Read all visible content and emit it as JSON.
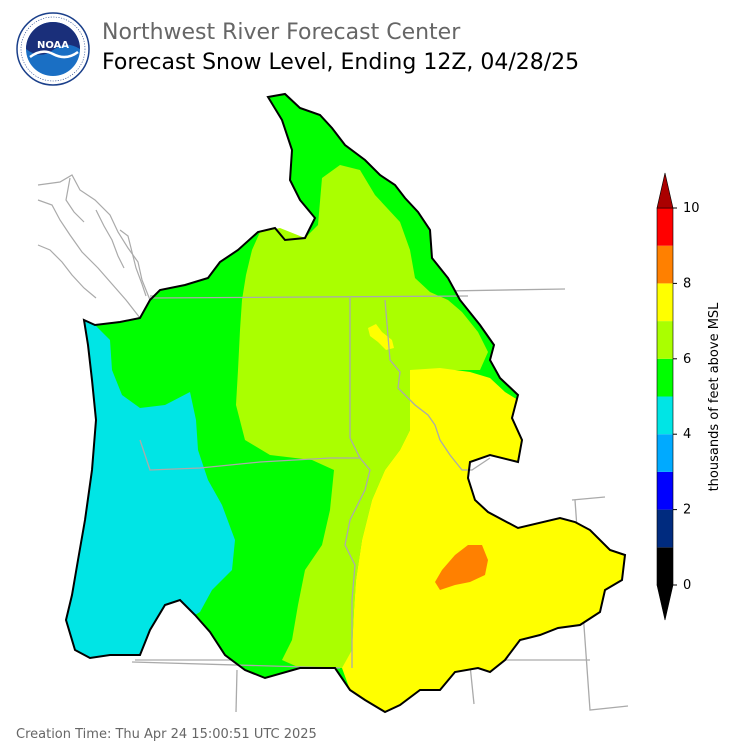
{
  "header": {
    "logo_text": "NOAA",
    "logo_ring_text": "NATIONAL OCEANIC AND ATMOSPHERIC ADMINISTRATION · U.S. DEPARTMENT OF COMMERCE",
    "agency": "Northwest River Forecast Center",
    "product": "Forecast Snow Level, Ending 12Z, 04/28/25"
  },
  "footer": {
    "creation_time": "Creation Time: Thu Apr 24 15:00:51 UTC 2025"
  },
  "colorbar": {
    "label": "thousands of feet above MSL",
    "ticks": [
      "0",
      "2",
      "4",
      "6",
      "8",
      "10"
    ],
    "bins": [
      {
        "from": 0,
        "to": 1,
        "color": "#000000"
      },
      {
        "from": 1,
        "to": 2,
        "color": "#002b7f"
      },
      {
        "from": 2,
        "to": 3,
        "color": "#0000ff"
      },
      {
        "from": 3,
        "to": 4,
        "color": "#00aaff"
      },
      {
        "from": 4,
        "to": 5,
        "color": "#00e5e5"
      },
      {
        "from": 5,
        "to": 6,
        "color": "#00ff00"
      },
      {
        "from": 6,
        "to": 7,
        "color": "#aaff00"
      },
      {
        "from": 7,
        "to": 8,
        "color": "#ffff00"
      },
      {
        "from": 8,
        "to": 9,
        "color": "#ff8000"
      },
      {
        "from": 9,
        "to": 10,
        "color": "#ff0000"
      }
    ],
    "under_color": "#000000",
    "over_color": "#aa0000"
  }
}
